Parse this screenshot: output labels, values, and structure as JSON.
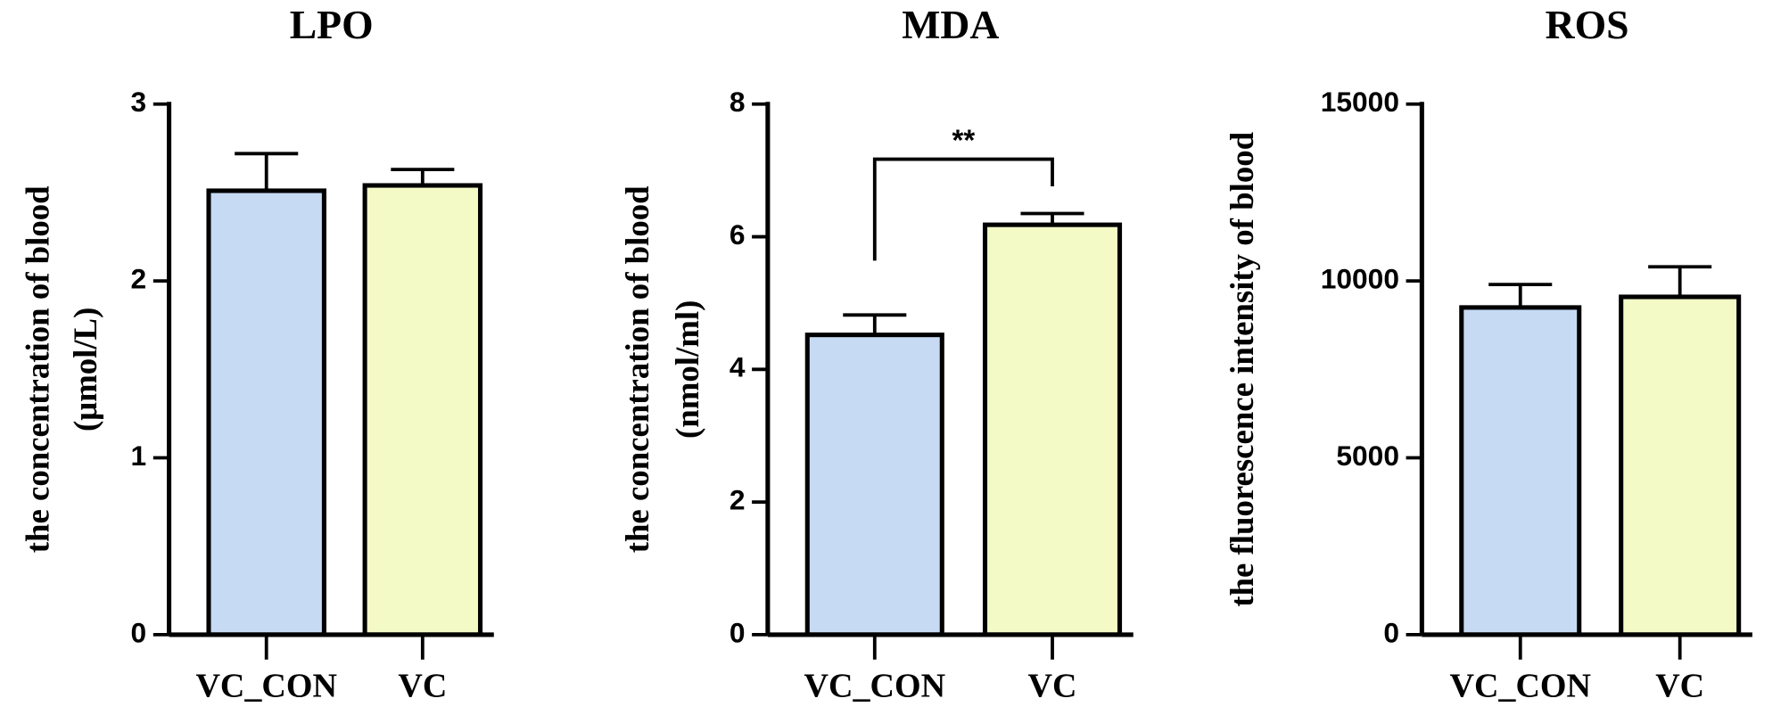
{
  "chart_data": [
    {
      "type": "bar",
      "title": "LPO",
      "ylabel": [
        "the concentration of blood",
        "(μmol/L)"
      ],
      "categories": [
        "VC_CON",
        "VC"
      ],
      "values": [
        2.51,
        2.54
      ],
      "errors": [
        0.21,
        0.09
      ],
      "colors": [
        "#c6daf4",
        "#f3fac6"
      ],
      "ylim": [
        0,
        3
      ],
      "yticks": [
        0,
        1,
        2,
        3
      ]
    },
    {
      "type": "bar",
      "title": "MDA",
      "ylabel": [
        "the concentration of blood",
        "(nmol/ml)"
      ],
      "categories": [
        "VC_CON",
        "VC"
      ],
      "values": [
        4.52,
        6.18
      ],
      "errors": [
        0.3,
        0.17
      ],
      "colors": [
        "#c6daf4",
        "#f3fac6"
      ],
      "ylim": [
        0,
        8
      ],
      "yticks": [
        0,
        2,
        4,
        6,
        8
      ],
      "annotation": "**"
    },
    {
      "type": "bar",
      "title": "ROS",
      "ylabel": [
        "the fluorescence intensity of blood"
      ],
      "categories": [
        "VC_CON",
        "VC"
      ],
      "values": [
        9250,
        9550
      ],
      "errors": [
        650,
        850
      ],
      "colors": [
        "#c6daf4",
        "#f3fac6"
      ],
      "ylim": [
        0,
        15000
      ],
      "yticks": [
        0,
        5000,
        10000,
        15000
      ]
    }
  ]
}
